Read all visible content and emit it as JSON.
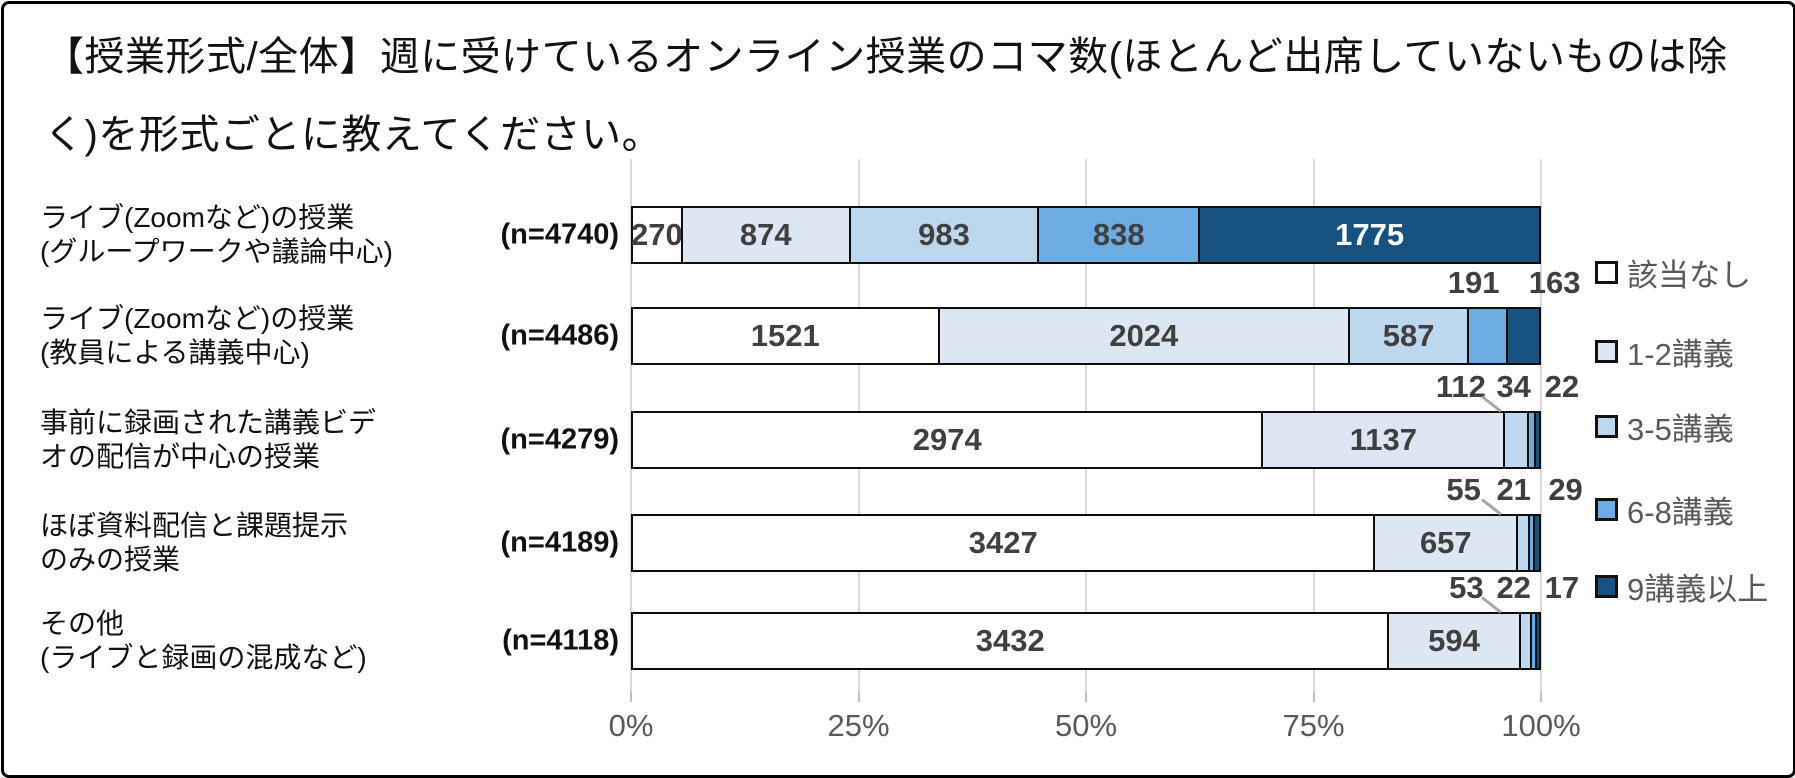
{
  "styles": {
    "frame_border": "#000000",
    "background": "#ffffff",
    "grid_color": "#d9d9d9",
    "tick_color": "#bfbfbf",
    "axis_text_color": "#595959",
    "value_text_color": "#404040",
    "value_text_on_dark": "#ffffff",
    "segment_border": "#0d0d0d",
    "dark_segment_color": "#175180"
  },
  "chart_data": {
    "type": "bar",
    "stacked": true,
    "orientation": "horizontal",
    "title": "【授業形式/全体】週に受けているオンライン授業のコマ数(ほとんど出席していないものは除く)を形式ごとに教えてください。",
    "x_axis": {
      "tick_labels": [
        "0%",
        "25%",
        "50%",
        "75%",
        "100%"
      ],
      "tick_values": [
        0,
        25,
        50,
        75,
        100
      ],
      "range": [
        0,
        100
      ],
      "gridlines": true
    },
    "legend": {
      "position": "right",
      "entries": [
        {
          "label": "該当なし",
          "color": "#ffffff"
        },
        {
          "label": "1-2講義",
          "color": "#dce7f3"
        },
        {
          "label": "3-5講義",
          "color": "#bdd7ee"
        },
        {
          "label": "6-8講義",
          "color": "#6dace3"
        },
        {
          "label": "9講義以上",
          "color": "#175180"
        }
      ]
    },
    "categories": [
      {
        "label_lines": [
          "ライブ(Zoomなど)の授業",
          "(グループワークや議論中心)"
        ],
        "n_label": "(n=4740)",
        "n": 4740,
        "values": [
          270,
          874,
          983,
          838,
          1775
        ]
      },
      {
        "label_lines": [
          "ライブ(Zoomなど)の授業",
          "(教員による講義中心)"
        ],
        "n_label": "(n=4486)",
        "n": 4486,
        "values": [
          1521,
          2024,
          587,
          191,
          163
        ],
        "above_x_pct": {
          "3": 92.6,
          "4": 101.5
        }
      },
      {
        "label_lines": [
          "事前に録画された講義ビデ",
          "オの配信が中心の授業"
        ],
        "n_label": "(n=4279)",
        "n": 4279,
        "values": [
          2974,
          1137,
          112,
          34,
          22
        ],
        "above_x_pct": {
          "2": 91.2,
          "3": 97.0,
          "4": 102.3
        },
        "leader_seg": 3
      },
      {
        "label_lines": [
          "ほぼ資料配信と課題提示",
          "のみの授業"
        ],
        "n_label": "(n=4189)",
        "n": 4189,
        "values": [
          3427,
          657,
          55,
          21,
          29
        ],
        "above_x_pct": {
          "2": 91.5,
          "3": 97.0,
          "4": 102.7
        },
        "leader_seg": 3
      },
      {
        "label_lines": [
          "その他",
          "(ライブと録画の混成など)"
        ],
        "n_label": "(n=4118)",
        "n": 4118,
        "values": [
          3432,
          594,
          53,
          22,
          17
        ],
        "above_x_pct": {
          "2": 91.8,
          "3": 97.0,
          "4": 102.3
        },
        "leader_seg": 3
      }
    ]
  }
}
